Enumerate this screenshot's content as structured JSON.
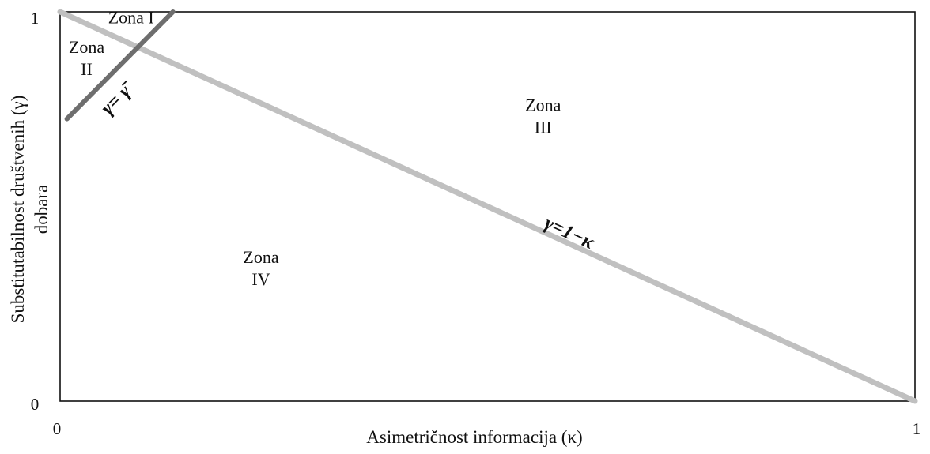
{
  "chart_data": {
    "type": "line",
    "xlabel": "Asimetričnost informacija  (κ)",
    "ylabel_line1": "Substitutabilnost društvenih  (γ)",
    "ylabel_line2": "dobara",
    "xlim": [
      0,
      1
    ],
    "ylim": [
      0,
      1
    ],
    "x_ticks": [
      "0",
      "1"
    ],
    "y_ticks": [
      "0",
      "1"
    ],
    "grid": false,
    "series": [
      {
        "name": "γ = 1 − κ",
        "color": "#c0c0c0",
        "x": [
          0,
          1
        ],
        "y": [
          1,
          0
        ]
      },
      {
        "name": "γ = γ̄",
        "color": "#6e6e6e",
        "x": [
          0.008,
          0.132
        ],
        "y": [
          0.725,
          1.0
        ]
      }
    ],
    "line_labels": {
      "decreasing": "γ=1−κ",
      "bar_gamma": "γ= γ̄"
    },
    "zones": [
      {
        "word": "Zona",
        "numeral": "I",
        "x": 0.083,
        "y": 0.985,
        "inline": true
      },
      {
        "word": "Zona",
        "numeral": "II",
        "x": 0.031,
        "y": 0.895
      },
      {
        "word": "Zona",
        "numeral": "III",
        "x": 0.565,
        "y": 0.745
      },
      {
        "word": "Zona",
        "numeral": "IV",
        "x": 0.235,
        "y": 0.355
      }
    ]
  }
}
